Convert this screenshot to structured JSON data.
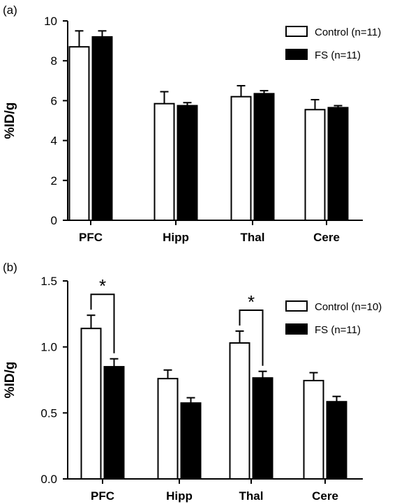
{
  "figure": {
    "panels": [
      "(a)",
      "(b)"
    ]
  },
  "chart_data": [
    {
      "type": "bar",
      "panel_label": "(a)",
      "ylabel": "%ID/g",
      "xlabel": "",
      "ylim": [
        0,
        10
      ],
      "yticks": [
        "0",
        "2",
        "4",
        "6",
        "8",
        "10"
      ],
      "ytick_values": [
        0,
        2,
        4,
        6,
        8,
        10
      ],
      "categories": [
        "PFC",
        "Hipp",
        "Thal",
        "Cere"
      ],
      "series": [
        {
          "name": "Control (n=11)",
          "color": "#ffffff",
          "values": [
            8.7,
            5.85,
            6.2,
            5.55
          ],
          "errors": [
            0.8,
            0.6,
            0.55,
            0.5
          ]
        },
        {
          "name": "FS (n=11)",
          "color": "#000000",
          "values": [
            9.2,
            5.75,
            6.35,
            5.65
          ],
          "errors": [
            0.3,
            0.15,
            0.15,
            0.1
          ]
        }
      ],
      "legend": "top-right",
      "significance": []
    },
    {
      "type": "bar",
      "panel_label": "(b)",
      "ylabel": "%ID/g",
      "xlabel": "",
      "ylim": [
        0,
        1.5
      ],
      "yticks": [
        "0.0",
        "0.5",
        "1.0",
        "1.5"
      ],
      "ytick_values": [
        0,
        0.5,
        1.0,
        1.5
      ],
      "categories": [
        "PFC",
        "Hipp",
        "Thal",
        "Cere"
      ],
      "series": [
        {
          "name": "Control (n=10)",
          "color": "#ffffff",
          "values": [
            1.14,
            0.76,
            1.03,
            0.745
          ],
          "errors": [
            0.1,
            0.065,
            0.09,
            0.06
          ]
        },
        {
          "name": "FS (n=11)",
          "color": "#000000",
          "values": [
            0.85,
            0.575,
            0.765,
            0.585
          ],
          "errors": [
            0.06,
            0.04,
            0.05,
            0.04
          ]
        }
      ],
      "legend": "top-right",
      "significance": [
        {
          "category_index": 0,
          "label": "*"
        },
        {
          "category_index": 2,
          "label": "*"
        }
      ]
    }
  ]
}
